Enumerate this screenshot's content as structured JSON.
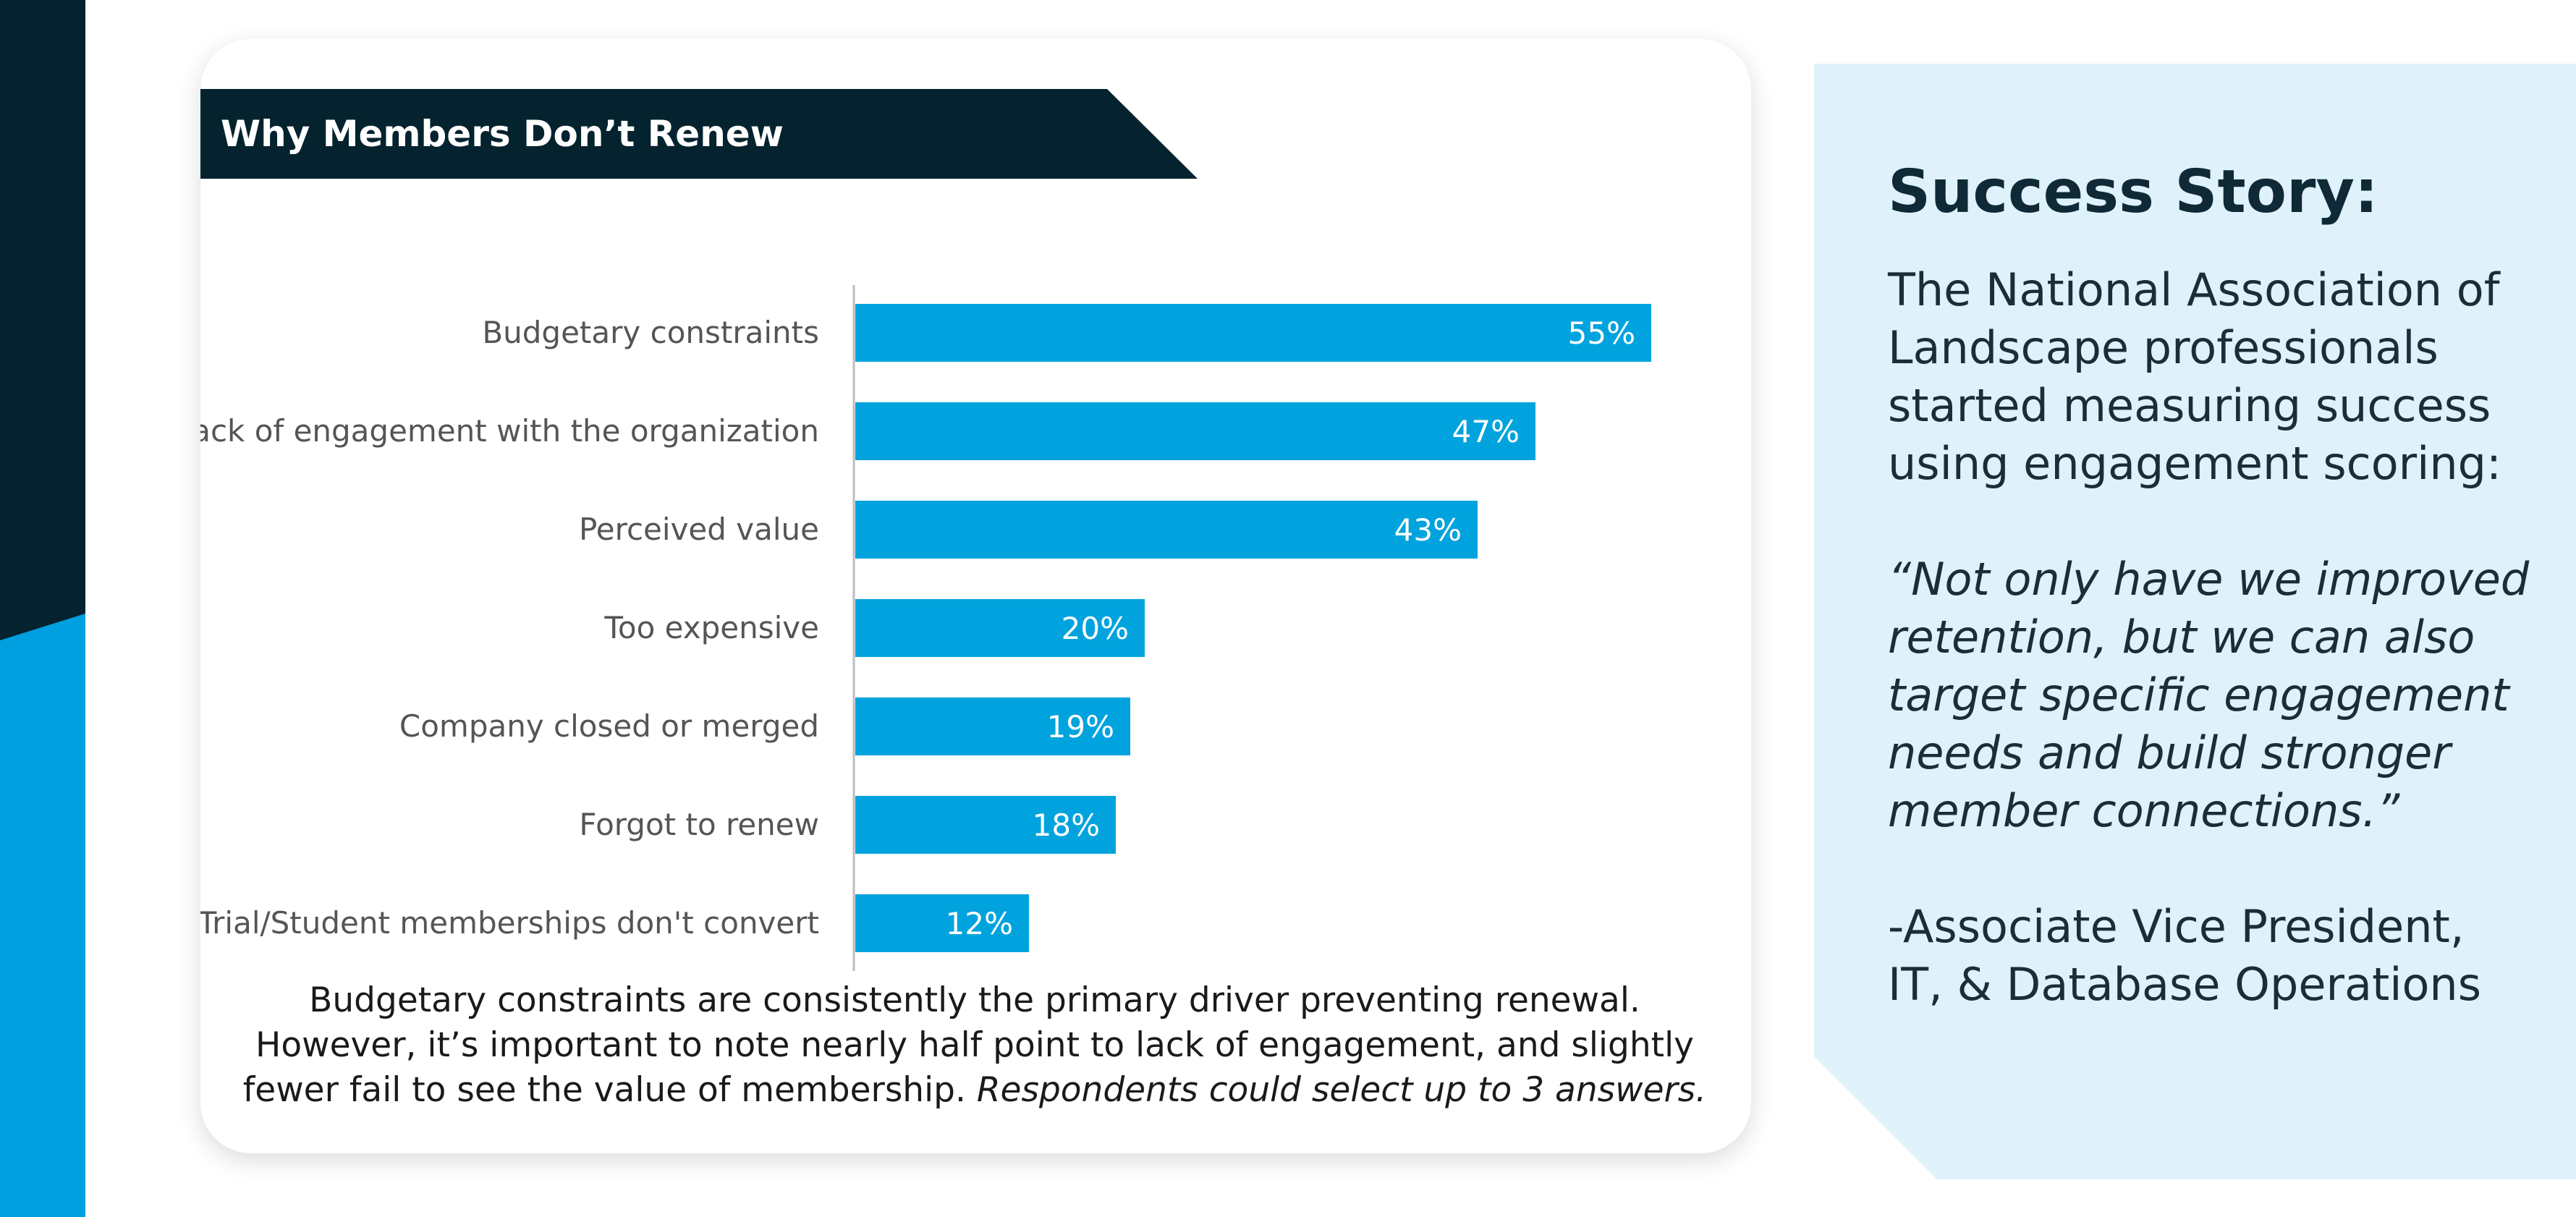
{
  "colors": {
    "navy": "#04232f",
    "accent_blue": "#009fdf",
    "bar_blue": "#00a3dd",
    "panel_light": "#dff2fb",
    "axis_gray": "#bdbdbd"
  },
  "chart_data": {
    "type": "bar",
    "orientation": "horizontal",
    "title": "Why Members Don’t Renew",
    "categories": [
      "Budgetary constraints",
      "Lack of engagement with the organization",
      "Perceived value",
      "Too expensive",
      "Company closed or merged",
      "Forgot to renew",
      "Trial/Student memberships don't convert"
    ],
    "values": [
      55,
      47,
      43,
      20,
      19,
      18,
      12
    ],
    "value_labels": [
      "55%",
      "47%",
      "43%",
      "20%",
      "19%",
      "18%",
      "12%"
    ],
    "unit": "%",
    "xlim": [
      0,
      60
    ],
    "xlabel": "",
    "ylabel": "",
    "grid": false,
    "legend": "none"
  },
  "caption": {
    "line1": "Budgetary constraints are consistently the primary driver preventing renewal.",
    "line2": "However, it’s important to note nearly half point to lack of engagement, and slightly",
    "line3": "fewer fail to see the value of membership.",
    "note": "Respondents could select up to 3 answers."
  },
  "story": {
    "heading": "Success Story:",
    "intro": "The National Association of Landscape professionals started measuring success using engagement scoring:",
    "quote": "“Not only have we improved retention, but we can also target specific engagement needs and build stronger member connections.”",
    "attribution_line1": "-Associate Vice President,",
    "attribution_line2": "IT, & Database Operations"
  }
}
